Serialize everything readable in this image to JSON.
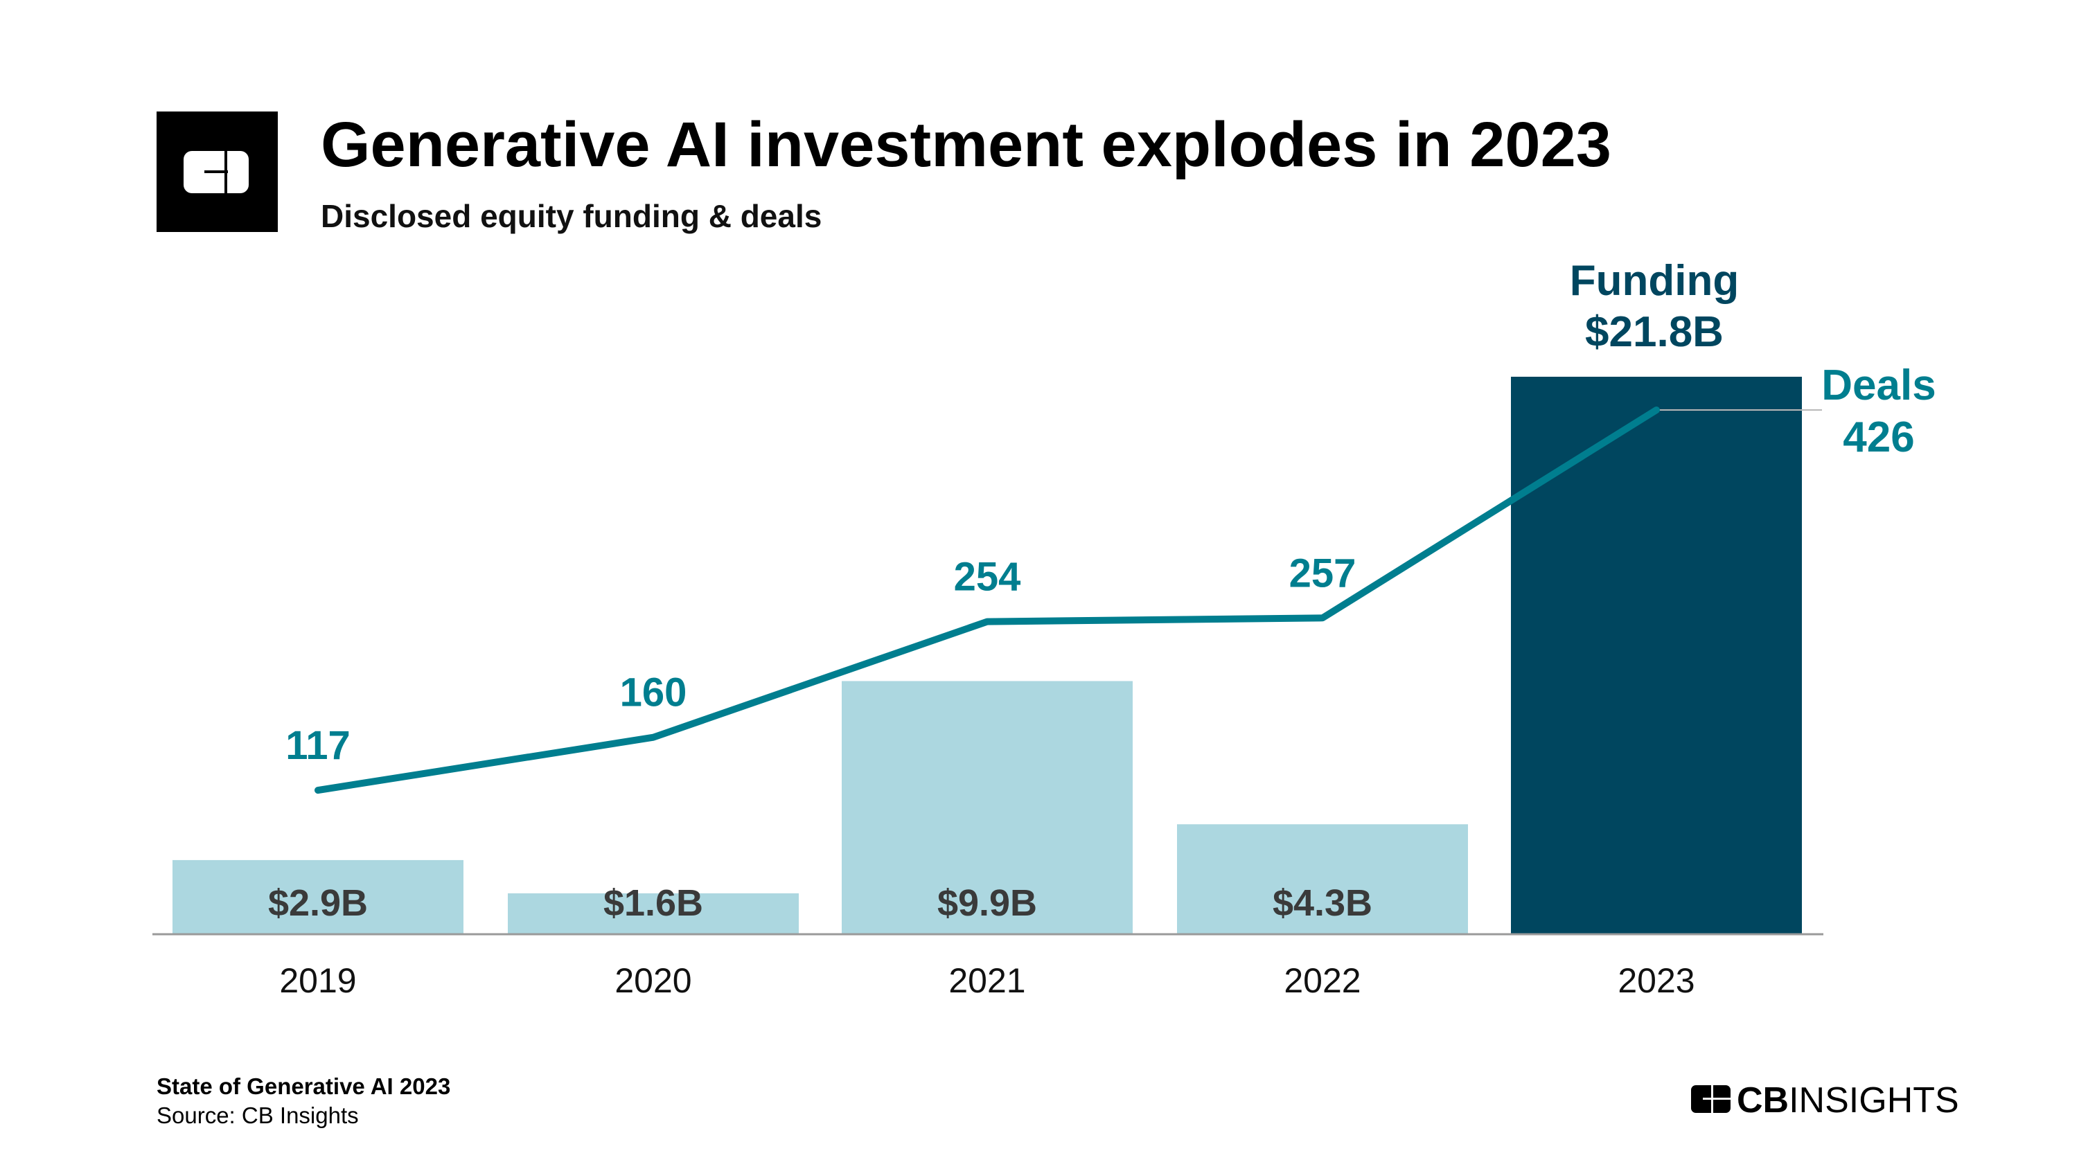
{
  "header": {
    "title": "Generative AI investment explodes in 2023",
    "subtitle": "Disclosed equity funding & deals",
    "logo_icon": "cb-insights-mark-icon"
  },
  "chart_data": {
    "type": "bar",
    "title": "Generative AI investment explodes in 2023",
    "subtitle": "Disclosed equity funding & deals",
    "categories": [
      "2019",
      "2020",
      "2021",
      "2022",
      "2023"
    ],
    "series": [
      {
        "name": "Funding",
        "type": "bar",
        "values": [
          2.9,
          1.6,
          9.9,
          4.3,
          21.8
        ],
        "labels": [
          "$2.9B",
          "$1.6B",
          "$9.9B",
          "$4.3B",
          "$21.8B"
        ],
        "unit": "$B"
      },
      {
        "name": "Deals",
        "type": "line",
        "values": [
          117,
          160,
          254,
          257,
          426
        ],
        "labels": [
          "117",
          "160",
          "254",
          "257",
          "426"
        ]
      }
    ],
    "annotations": {
      "funding_name": "Funding",
      "funding_last": "$21.8B",
      "deals_name": "Deals",
      "deals_last": "426"
    },
    "grid": false,
    "legend": "none (inline labels on 2023)",
    "colors": {
      "bar": "#acd7e0",
      "bar_highlight": "#00465f",
      "line": "#007e8f",
      "funding_annotation": "#00465f",
      "deals_annotation": "#007e8f",
      "bar_label": "#3a3a3a",
      "axis": "#9a9a9a"
    }
  },
  "footer": {
    "report": "State of Generative AI 2023",
    "source": "Source: CB Insights",
    "brand_bold": "CB",
    "brand_regular": "INSIGHTS"
  }
}
